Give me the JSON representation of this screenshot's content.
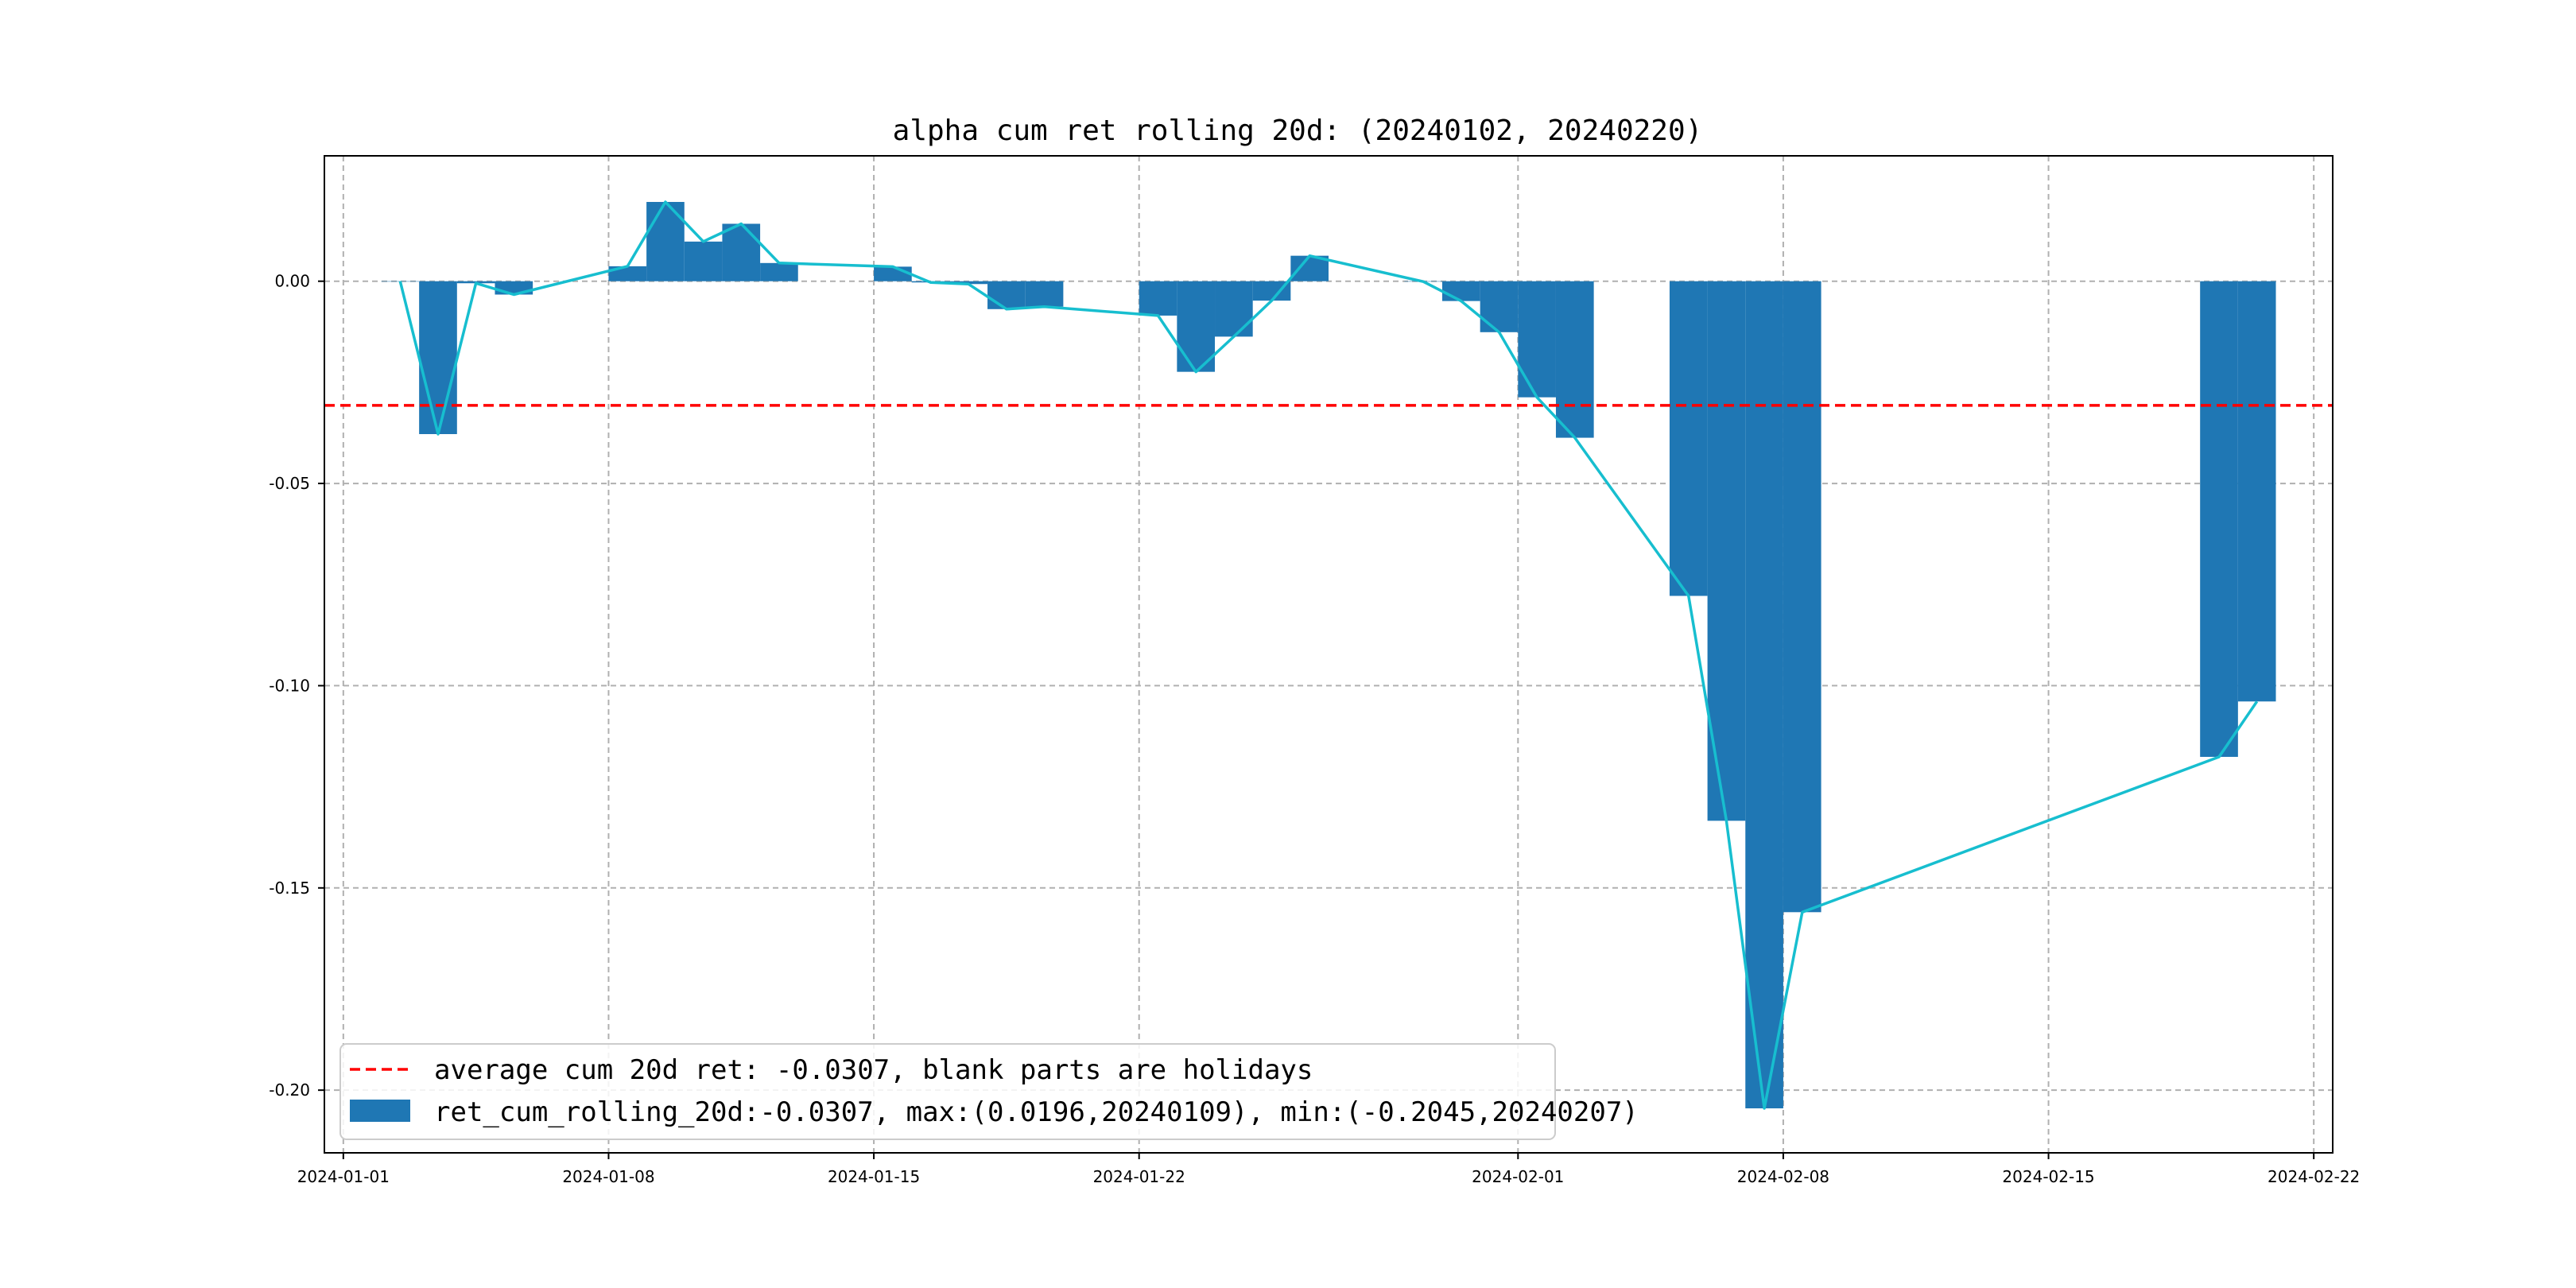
{
  "chart_data": {
    "type": "bar",
    "title": "alpha cum ret rolling 20d: (20240102, 20240220)",
    "xlabel": "",
    "ylabel": "",
    "x_axis_type": "date",
    "xlim": [
      "2023-12-31T12:00:00",
      "2024-02-22T12:00:00"
    ],
    "ylim": [
      -0.2155,
      0.031
    ],
    "x_ticks": [
      "2024-01-01",
      "2024-01-08",
      "2024-01-15",
      "2024-01-22",
      "2024-02-01",
      "2024-02-08",
      "2024-02-15",
      "2024-02-22"
    ],
    "y_ticks": [
      0.0,
      -0.05,
      -0.1,
      -0.15,
      -0.2
    ],
    "y_tick_labels": [
      "0.00",
      "-0.05",
      "-0.10",
      "-0.15",
      "-0.20"
    ],
    "grid": true,
    "legend_position": "lower-left",
    "series": [
      {
        "name": "ret_cum_rolling_20d:-0.0307, max:(0.0196,20240109), min:(-0.2045,20240207)",
        "kind": "bar",
        "color": "#1f77b4",
        "x": [
          "2024-01-02",
          "2024-01-03",
          "2024-01-04",
          "2024-01-05",
          "2024-01-08",
          "2024-01-09",
          "2024-01-10",
          "2024-01-11",
          "2024-01-12",
          "2024-01-15",
          "2024-01-16",
          "2024-01-17",
          "2024-01-18",
          "2024-01-19",
          "2024-01-22",
          "2024-01-23",
          "2024-01-24",
          "2024-01-25",
          "2024-01-26",
          "2024-01-29",
          "2024-01-30",
          "2024-01-31",
          "2024-02-01",
          "2024-02-02",
          "2024-02-05",
          "2024-02-06",
          "2024-02-07",
          "2024-02-08",
          "2024-02-19",
          "2024-02-20"
        ],
        "values": [
          0.0,
          -0.0378,
          -0.0005,
          -0.0033,
          0.0037,
          0.0196,
          0.0098,
          0.0142,
          0.0045,
          0.0036,
          -0.0003,
          -0.0007,
          -0.0069,
          -0.0063,
          -0.0085,
          -0.0224,
          -0.0137,
          -0.0048,
          0.0063,
          -0.0001,
          -0.0049,
          -0.0126,
          -0.0287,
          -0.0387,
          -0.0778,
          -0.1334,
          -0.2045,
          -0.156,
          -0.1176,
          -0.1039
        ]
      },
      {
        "name": "",
        "kind": "line",
        "color": "#17becf"
      },
      {
        "name": "average cum 20d ret: -0.0307, blank parts are holidays",
        "kind": "hline",
        "value": -0.0307,
        "color": "#ff0000",
        "style": "dashed"
      }
    ]
  }
}
